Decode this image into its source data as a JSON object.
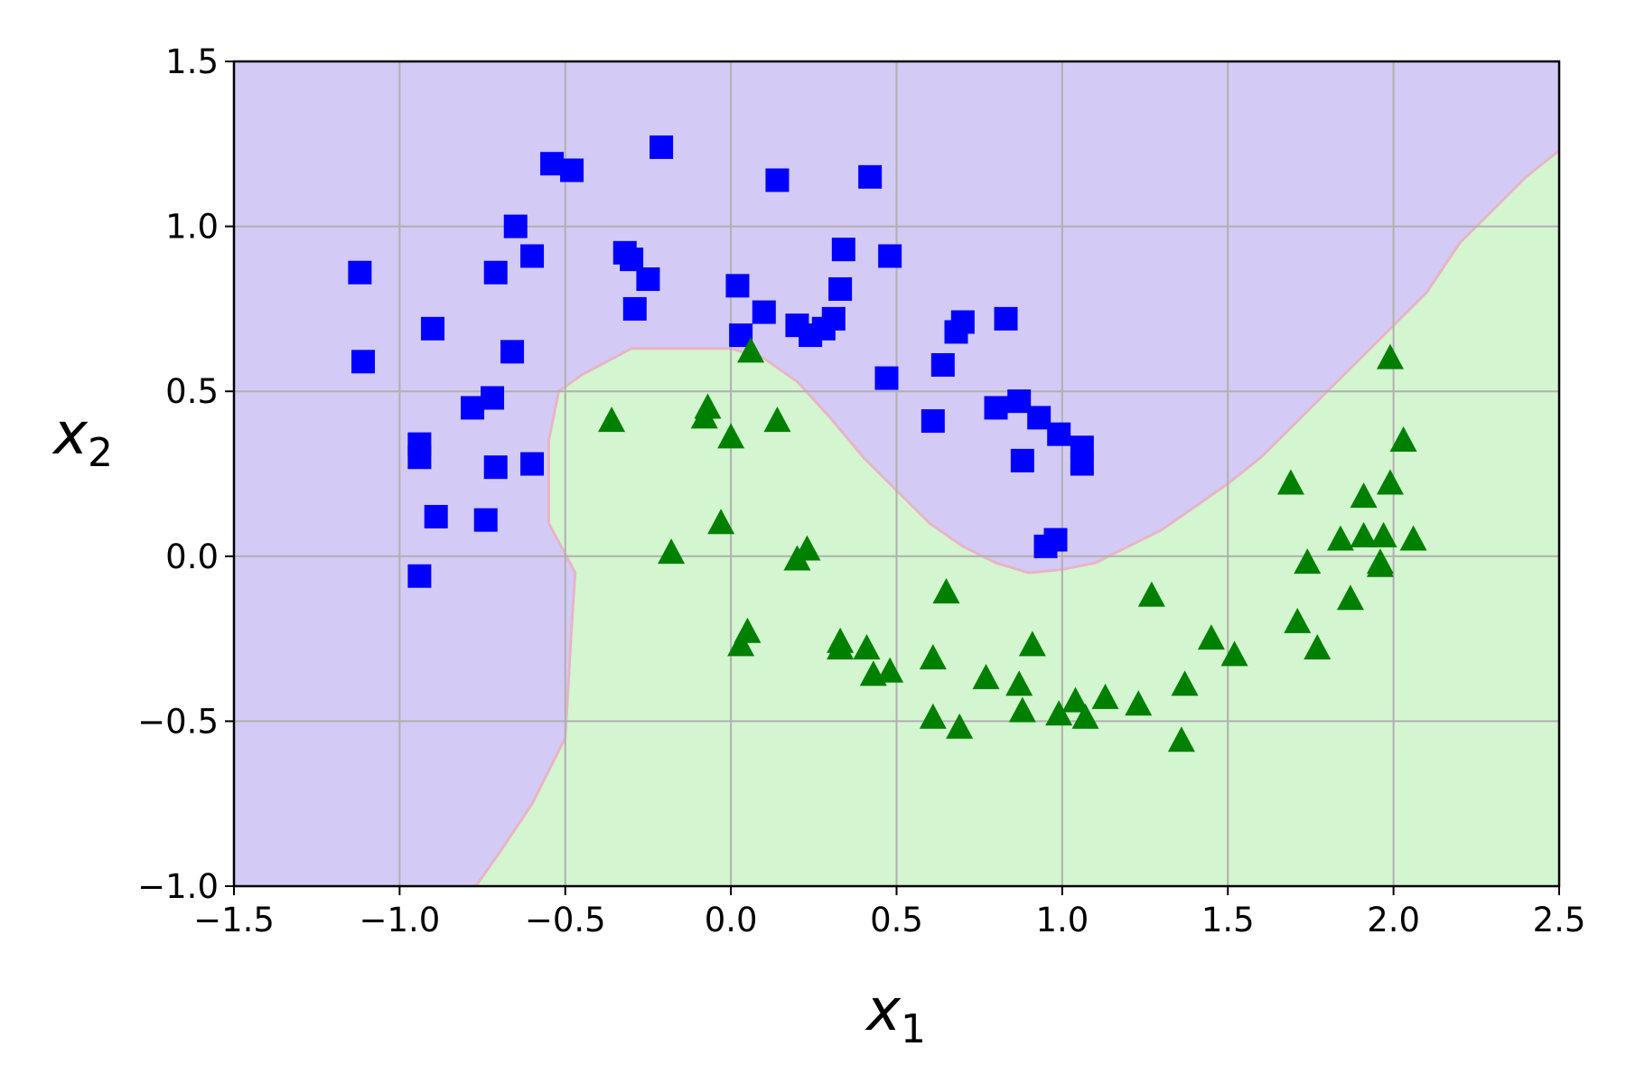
{
  "chart_data": {
    "type": "scatter",
    "title": "",
    "xlabel": "x",
    "xlabel_sub": "1",
    "ylabel": "x",
    "ylabel_sub": "2",
    "xlim": [
      -1.5,
      2.5
    ],
    "ylim": [
      -1.0,
      1.5
    ],
    "grid": true,
    "x_ticks": [
      -1.5,
      -1.0,
      -0.5,
      0.0,
      0.5,
      1.0,
      1.5,
      2.0,
      2.5
    ],
    "x_tick_labels": [
      "−1.5",
      "−1.0",
      "−0.5",
      "0.0",
      "0.5",
      "1.0",
      "1.5",
      "2.0",
      "2.5"
    ],
    "y_ticks": [
      -1.0,
      -0.5,
      0.0,
      0.5,
      1.0,
      1.5
    ],
    "y_tick_labels": [
      "−1.0",
      "−0.5",
      "0.0",
      "0.5",
      "1.0",
      "1.5"
    ],
    "regions": {
      "class0_color": "#d3cbf5",
      "class1_color": "#d3f5cf",
      "decision_boundary": [
        [
          -0.77,
          -1.0
        ],
        [
          -0.7,
          -0.9
        ],
        [
          -0.6,
          -0.75
        ],
        [
          -0.5,
          -0.55
        ],
        [
          -0.48,
          -0.2
        ],
        [
          -0.47,
          -0.05
        ],
        [
          -0.55,
          0.1
        ],
        [
          -0.55,
          0.35
        ],
        [
          -0.52,
          0.5
        ],
        [
          -0.45,
          0.55
        ],
        [
          -0.3,
          0.63
        ],
        [
          -0.15,
          0.63
        ],
        [
          0.0,
          0.63
        ],
        [
          0.1,
          0.6
        ],
        [
          0.2,
          0.53
        ],
        [
          0.3,
          0.42
        ],
        [
          0.4,
          0.3
        ],
        [
          0.5,
          0.2
        ],
        [
          0.6,
          0.1
        ],
        [
          0.7,
          0.03
        ],
        [
          0.8,
          -0.02
        ],
        [
          0.9,
          -0.05
        ],
        [
          1.0,
          -0.04
        ],
        [
          1.1,
          -0.02
        ],
        [
          1.2,
          0.03
        ],
        [
          1.3,
          0.08
        ],
        [
          1.4,
          0.15
        ],
        [
          1.5,
          0.22
        ],
        [
          1.6,
          0.3
        ],
        [
          1.7,
          0.4
        ],
        [
          1.8,
          0.5
        ],
        [
          1.9,
          0.6
        ],
        [
          2.0,
          0.7
        ],
        [
          2.1,
          0.8
        ],
        [
          2.2,
          0.95
        ],
        [
          2.3,
          1.05
        ],
        [
          2.4,
          1.15
        ],
        [
          2.5,
          1.23
        ]
      ]
    },
    "series": [
      {
        "marker": "square",
        "color": "#0000ff",
        "points": [
          [
            -1.12,
            0.86
          ],
          [
            -1.11,
            0.59
          ],
          [
            -0.94,
            0.34
          ],
          [
            -0.94,
            0.3
          ],
          [
            -0.94,
            -0.06
          ],
          [
            -0.9,
            0.69
          ],
          [
            -0.89,
            0.12
          ],
          [
            -0.78,
            0.45
          ],
          [
            -0.74,
            0.11
          ],
          [
            -0.72,
            0.48
          ],
          [
            -0.71,
            0.86
          ],
          [
            -0.71,
            0.27
          ],
          [
            -0.66,
            0.62
          ],
          [
            -0.65,
            1.0
          ],
          [
            -0.6,
            0.91
          ],
          [
            -0.6,
            0.28
          ],
          [
            -0.54,
            1.19
          ],
          [
            -0.48,
            1.17
          ],
          [
            -0.32,
            0.92
          ],
          [
            -0.3,
            0.9
          ],
          [
            -0.29,
            0.75
          ],
          [
            -0.25,
            0.84
          ],
          [
            -0.21,
            1.24
          ],
          [
            0.02,
            0.82
          ],
          [
            0.03,
            0.67
          ],
          [
            0.1,
            0.74
          ],
          [
            0.14,
            1.14
          ],
          [
            0.2,
            0.7
          ],
          [
            0.24,
            0.67
          ],
          [
            0.28,
            0.69
          ],
          [
            0.31,
            0.72
          ],
          [
            0.33,
            0.81
          ],
          [
            0.34,
            0.93
          ],
          [
            0.42,
            1.15
          ],
          [
            0.48,
            0.91
          ],
          [
            0.47,
            0.54
          ],
          [
            0.61,
            0.41
          ],
          [
            0.64,
            0.58
          ],
          [
            0.68,
            0.68
          ],
          [
            0.7,
            0.71
          ],
          [
            0.8,
            0.45
          ],
          [
            0.83,
            0.72
          ],
          [
            0.87,
            0.47
          ],
          [
            0.88,
            0.29
          ],
          [
            0.93,
            0.42
          ],
          [
            0.95,
            0.03
          ],
          [
            0.98,
            0.05
          ],
          [
            0.99,
            0.37
          ],
          [
            1.06,
            0.33
          ],
          [
            1.06,
            0.28
          ]
        ]
      },
      {
        "marker": "triangle",
        "color": "#008000",
        "points": [
          [
            -0.36,
            0.41
          ],
          [
            -0.18,
            0.01
          ],
          [
            -0.08,
            0.42
          ],
          [
            -0.07,
            0.45
          ],
          [
            -0.03,
            0.1
          ],
          [
            0.0,
            0.36
          ],
          [
            0.03,
            -0.27
          ],
          [
            0.05,
            -0.23
          ],
          [
            0.06,
            0.62
          ],
          [
            0.14,
            0.41
          ],
          [
            0.2,
            -0.01
          ],
          [
            0.23,
            0.02
          ],
          [
            0.33,
            -0.26
          ],
          [
            0.33,
            -0.28
          ],
          [
            0.41,
            -0.28
          ],
          [
            0.43,
            -0.36
          ],
          [
            0.48,
            -0.35
          ],
          [
            0.61,
            -0.31
          ],
          [
            0.61,
            -0.49
          ],
          [
            0.65,
            -0.11
          ],
          [
            0.69,
            -0.52
          ],
          [
            0.77,
            -0.37
          ],
          [
            0.87,
            -0.39
          ],
          [
            0.88,
            -0.47
          ],
          [
            0.91,
            -0.27
          ],
          [
            0.99,
            -0.48
          ],
          [
            1.04,
            -0.44
          ],
          [
            1.07,
            -0.49
          ],
          [
            1.13,
            -0.43
          ],
          [
            1.23,
            -0.45
          ],
          [
            1.27,
            -0.12
          ],
          [
            1.36,
            -0.56
          ],
          [
            1.37,
            -0.39
          ],
          [
            1.45,
            -0.25
          ],
          [
            1.52,
            -0.3
          ],
          [
            1.69,
            0.22
          ],
          [
            1.71,
            -0.2
          ],
          [
            1.74,
            -0.02
          ],
          [
            1.77,
            -0.28
          ],
          [
            1.84,
            0.05
          ],
          [
            1.87,
            -0.13
          ],
          [
            1.91,
            0.06
          ],
          [
            1.91,
            0.18
          ],
          [
            1.96,
            -0.03
          ],
          [
            1.97,
            0.06
          ],
          [
            1.99,
            0.22
          ],
          [
            1.99,
            0.6
          ],
          [
            2.03,
            0.35
          ],
          [
            2.06,
            0.05
          ],
          [
            1.96,
            -0.02
          ]
        ]
      }
    ]
  }
}
